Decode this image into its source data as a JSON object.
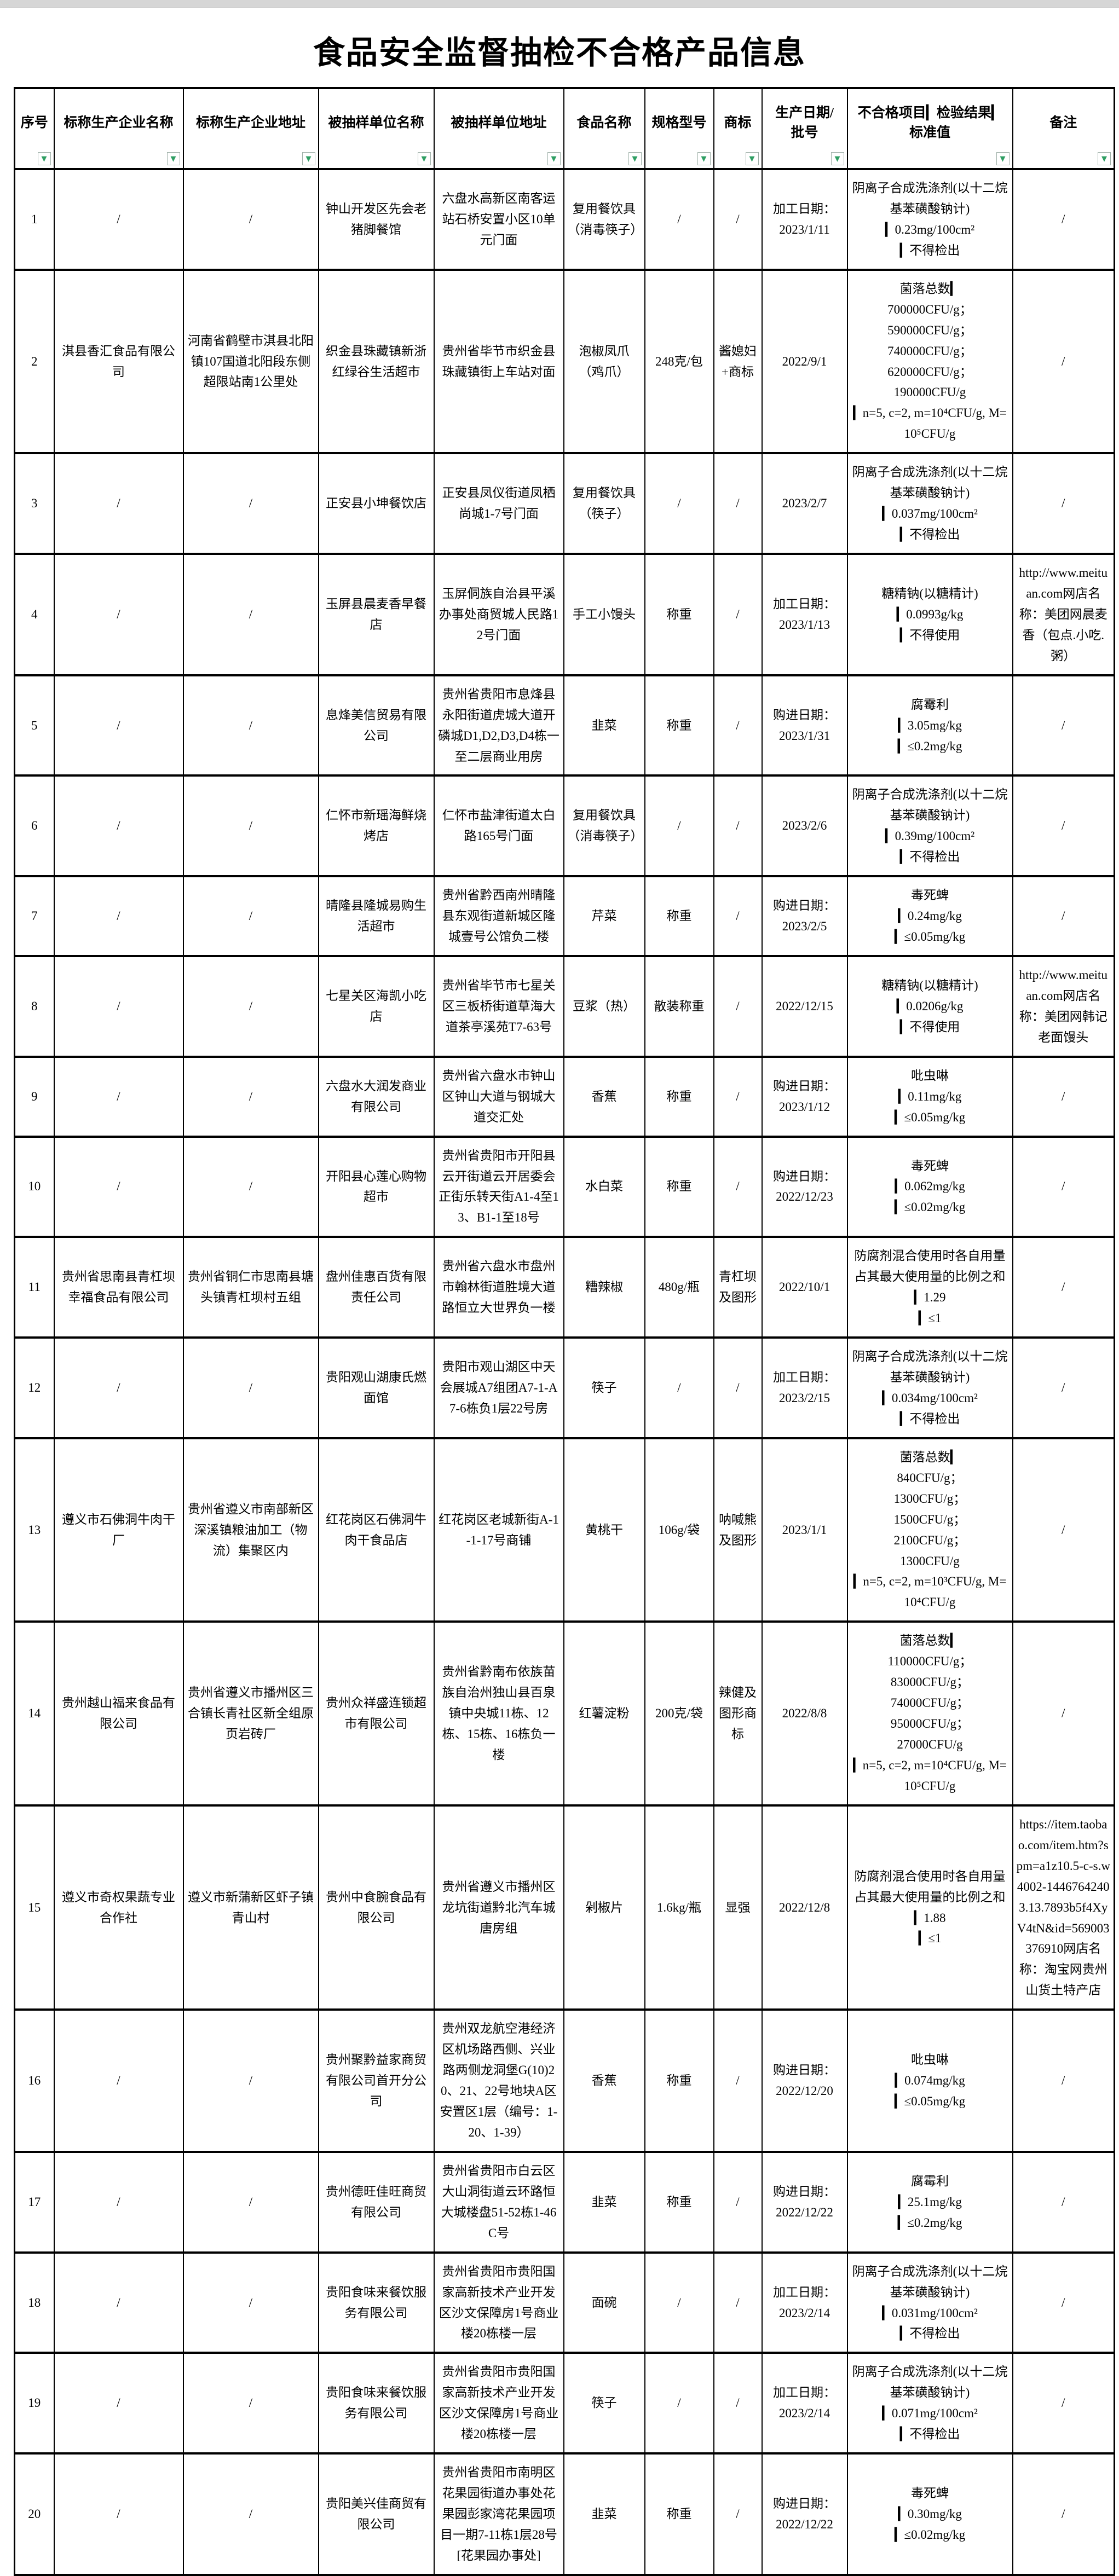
{
  "page": {
    "title": "食品安全监督抽检不合格产品信息"
  },
  "icons": {
    "filter": "▼"
  },
  "colors": {
    "filter_green": "#2f9e63",
    "border": "#000000",
    "chrome_gray": "#d6d6d6"
  },
  "table": {
    "columns": [
      {
        "key": "index",
        "label": "序号"
      },
      {
        "key": "producer_name",
        "label": "标称生产企业名称"
      },
      {
        "key": "producer_addr",
        "label": "标称生产企业地址"
      },
      {
        "key": "sampled_name",
        "label": "被抽样单位名称"
      },
      {
        "key": "sampled_addr",
        "label": "被抽样单位地址"
      },
      {
        "key": "food",
        "label": "食品名称"
      },
      {
        "key": "spec",
        "label": "规格型号"
      },
      {
        "key": "brand",
        "label": "商标"
      },
      {
        "key": "date",
        "label": "生产日期/\n批号"
      },
      {
        "key": "result",
        "label": "不合格项目▎检验结果▎\n标准值"
      },
      {
        "key": "note",
        "label": "备注"
      }
    ],
    "rows": [
      {
        "index": "1",
        "producer_name": "/",
        "producer_addr": "/",
        "sampled_name": "钟山开发区先会老猪脚餐馆",
        "sampled_addr": "六盘水高新区南客运站石桥安置小区10单元门面",
        "food": "复用餐饮具（消毒筷子）",
        "spec": "/",
        "brand": "/",
        "date": "加工日期：\n2023/1/11",
        "result": "阴离子合成洗涤剂(以十二烷基苯磺酸钠计)\n▎0.23mg/100cm²\n▎不得检出",
        "note": "/"
      },
      {
        "index": "2",
        "producer_name": "淇县香汇食品有限公司",
        "producer_addr": "河南省鹤壁市淇县北阳镇107国道北阳段东侧超限站南1公里处",
        "sampled_name": "织金县珠藏镇新浙红绿谷生活超市",
        "sampled_addr": "贵州省毕节市织金县珠藏镇街上车站对面",
        "food": "泡椒凤爪（鸡爪）",
        "spec": "248克/包",
        "brand": "酱媳妇+商标",
        "date": "2022/9/1",
        "result": "菌落总数▎\n700000CFU/g；\n590000CFU/g；\n740000CFU/g；\n620000CFU/g；\n190000CFU/g\n▎n=5, c=2, m=10⁴CFU/g, M=10⁵CFU/g",
        "note": "/"
      },
      {
        "index": "3",
        "producer_name": "/",
        "producer_addr": "/",
        "sampled_name": "正安县小坤餐饮店",
        "sampled_addr": "正安县凤仪街道凤栖尚城1-7号门面",
        "food": "复用餐饮具（筷子）",
        "spec": "/",
        "brand": "/",
        "date": "2023/2/7",
        "result": "阴离子合成洗涤剂(以十二烷基苯磺酸钠计)\n▎0.037mg/100cm²\n▎不得检出",
        "note": "/"
      },
      {
        "index": "4",
        "producer_name": "/",
        "producer_addr": "/",
        "sampled_name": "玉屏县晨麦香早餐店",
        "sampled_addr": "玉屏侗族自治县平溪办事处商贸城人民路12号门面",
        "food": "手工小馒头",
        "spec": "称重",
        "brand": "/",
        "date": "加工日期：\n2023/1/13",
        "result": "糖精钠(以糖精计)\n▎0.0993g/kg\n▎不得使用",
        "note": "http://www.meituan.com网店名称：美团网晨麦香（包点.小吃.粥）"
      },
      {
        "index": "5",
        "producer_name": "/",
        "producer_addr": "/",
        "sampled_name": "息烽美信贸易有限公司",
        "sampled_addr": "贵州省贵阳市息烽县永阳街道虎城大道开磷城D1,D2,D3,D4栋一至二层商业用房",
        "food": "韭菜",
        "spec": "称重",
        "brand": "/",
        "date": "购进日期：\n2023/1/31",
        "result": "腐霉利\n▎3.05mg/kg\n▎≤0.2mg/kg",
        "note": "/"
      },
      {
        "index": "6",
        "producer_name": "/",
        "producer_addr": "/",
        "sampled_name": "仁怀市新瑶海鲜烧烤店",
        "sampled_addr": "仁怀市盐津街道太白路165号门面",
        "food": "复用餐饮具（消毒筷子）",
        "spec": "/",
        "brand": "/",
        "date": "2023/2/6",
        "result": "阴离子合成洗涤剂(以十二烷基苯磺酸钠计)\n▎0.39mg/100cm²\n▎不得检出",
        "note": "/"
      },
      {
        "index": "7",
        "producer_name": "/",
        "producer_addr": "/",
        "sampled_name": "晴隆县隆城易购生活超市",
        "sampled_addr": "贵州省黔西南州晴隆县东观街道新城区隆城壹号公馆负二楼",
        "food": "芹菜",
        "spec": "称重",
        "brand": "/",
        "date": "购进日期：\n2023/2/5",
        "result": "毒死蜱\n▎0.24mg/kg\n▎≤0.05mg/kg",
        "note": "/"
      },
      {
        "index": "8",
        "producer_name": "/",
        "producer_addr": "/",
        "sampled_name": "七星关区海凯小吃店",
        "sampled_addr": "贵州省毕节市七星关区三板桥街道草海大道茶亭溪苑T7-63号",
        "food": "豆浆（热）",
        "spec": "散装称重",
        "brand": "/",
        "date": "2022/12/15",
        "result": "糖精钠(以糖精计)\n▎0.0206g/kg\n▎不得使用",
        "note": "http://www.meituan.com网店名称：美团网韩记老面馒头"
      },
      {
        "index": "9",
        "producer_name": "/",
        "producer_addr": "/",
        "sampled_name": "六盘水大润发商业有限公司",
        "sampled_addr": "贵州省六盘水市钟山区钟山大道与钢城大道交汇处",
        "food": "香蕉",
        "spec": "称重",
        "brand": "/",
        "date": "购进日期：\n2023/1/12",
        "result": "吡虫啉\n▎0.11mg/kg\n▎≤0.05mg/kg",
        "note": "/"
      },
      {
        "index": "10",
        "producer_name": "/",
        "producer_addr": "/",
        "sampled_name": "开阳县心莲心购物超市",
        "sampled_addr": "贵州省贵阳市开阳县云开街道云开居委会正街乐转天街A1-4至13、B1-1至18号",
        "food": "水白菜",
        "spec": "称重",
        "brand": "/",
        "date": "购进日期：\n2022/12/23",
        "result": "毒死蜱\n▎0.062mg/kg\n▎≤0.02mg/kg",
        "note": "/"
      },
      {
        "index": "11",
        "producer_name": "贵州省思南县青杠坝幸福食品有限公司",
        "producer_addr": "贵州省铜仁市思南县塘头镇青杠坝村五组",
        "sampled_name": "盘州佳惠百货有限责任公司",
        "sampled_addr": "贵州省六盘水市盘州市翰林街道胜境大道路恒立大世界负一楼",
        "food": "糟辣椒",
        "spec": "480g/瓶",
        "brand": "青杠坝及图形",
        "date": "2022/10/1",
        "result": "防腐剂混合使用时各自用量占其最大使用量的比例之和\n▎1.29\n▎≤1",
        "note": "/"
      },
      {
        "index": "12",
        "producer_name": "/",
        "producer_addr": "/",
        "sampled_name": "贵阳观山湖康氏燃面馆",
        "sampled_addr": "贵阳市观山湖区中天会展城A7组团A7-1-A7-6栋负1层22号房",
        "food": "筷子",
        "spec": "/",
        "brand": "/",
        "date": "加工日期：\n2023/2/15",
        "result": "阴离子合成洗涤剂(以十二烷基苯磺酸钠计)\n▎0.034mg/100cm²\n▎不得检出",
        "note": "/"
      },
      {
        "index": "13",
        "producer_name": "遵义市石佛洞牛肉干厂",
        "producer_addr": "贵州省遵义市南部新区深溪镇粮油加工（物流）集聚区内",
        "sampled_name": "红花岗区石佛洞牛肉干食品店",
        "sampled_addr": "红花岗区老城新街A-1-1-17号商铺",
        "food": "黄桃干",
        "spec": "106g/袋",
        "brand": "呐喊熊及图形",
        "date": "2023/1/1",
        "result": "菌落总数▎\n840CFU/g；\n1300CFU/g；\n1500CFU/g；\n2100CFU/g；\n1300CFU/g\n▎n=5, c=2, m=10³CFU/g, M=10⁴CFU/g",
        "note": "/"
      },
      {
        "index": "14",
        "producer_name": "贵州越山福来食品有限公司",
        "producer_addr": "贵州省遵义市播州区三合镇长青社区新全组原页岩砖厂",
        "sampled_name": "贵州众祥盛连锁超市有限公司",
        "sampled_addr": "贵州省黔南布依族苗族自治州独山县百泉镇中央城11栋、12栋、15栋、16栋负一楼",
        "food": "红薯淀粉",
        "spec": "200克/袋",
        "brand": "辣健及图形商标",
        "date": "2022/8/8",
        "result": "菌落总数▎\n110000CFU/g；\n83000CFU/g；\n74000CFU/g；\n95000CFU/g；\n27000CFU/g\n▎n=5, c=2, m=10⁴CFU/g, M=10⁵CFU/g",
        "note": "/"
      },
      {
        "index": "15",
        "producer_name": "遵义市奇权果蔬专业合作社",
        "producer_addr": "遵义市新蒲新区虾子镇青山村",
        "sampled_name": "贵州中食腕食品有限公司",
        "sampled_addr": "贵州省遵义市播州区龙坑街道黔北汽车城唐房组",
        "food": "剁椒片",
        "spec": "1.6kg/瓶",
        "brand": "显强",
        "date": "2022/12/8",
        "result": "防腐剂混合使用时各自用量占其最大使用量的比例之和\n▎1.88\n▎≤1",
        "note": "https://item.taobao.com/item.htm?spm=a1z10.5-c-s.w4002-14467642403.13.7893b5f4XyV4tN&id=569003376910网店名称：淘宝网贵州山货土特产店"
      },
      {
        "index": "16",
        "producer_name": "/",
        "producer_addr": "/",
        "sampled_name": "贵州聚黔益家商贸有限公司首开分公司",
        "sampled_addr": "贵州双龙航空港经济区机场路西侧、兴业路两侧龙洞堡G(10)20、21、22号地块A区安置区1层（编号：1-20、1-39）",
        "food": "香蕉",
        "spec": "称重",
        "brand": "/",
        "date": "购进日期：\n2022/12/20",
        "result": "吡虫啉\n▎0.074mg/kg\n▎≤0.05mg/kg",
        "note": "/"
      },
      {
        "index": "17",
        "producer_name": "/",
        "producer_addr": "/",
        "sampled_name": "贵州德旺佳旺商贸有限公司",
        "sampled_addr": "贵州省贵阳市白云区大山洞街道云环路恒大城楼盘51-52栋1-46C号",
        "food": "韭菜",
        "spec": "称重",
        "brand": "/",
        "date": "购进日期：\n2022/12/22",
        "result": "腐霉利\n▎25.1mg/kg\n▎≤0.2mg/kg",
        "note": "/"
      },
      {
        "index": "18",
        "producer_name": "/",
        "producer_addr": "/",
        "sampled_name": "贵阳食味来餐饮服务有限公司",
        "sampled_addr": "贵州省贵阳市贵阳国家高新技术产业开发区沙文保障房1号商业楼20栋楼一层",
        "food": "面碗",
        "spec": "/",
        "brand": "/",
        "date": "加工日期：\n2023/2/14",
        "result": "阴离子合成洗涤剂(以十二烷基苯磺酸钠计)\n▎0.031mg/100cm²\n▎不得检出",
        "note": "/"
      },
      {
        "index": "19",
        "producer_name": "/",
        "producer_addr": "/",
        "sampled_name": "贵阳食味来餐饮服务有限公司",
        "sampled_addr": "贵州省贵阳市贵阳国家高新技术产业开发区沙文保障房1号商业楼20栋楼一层",
        "food": "筷子",
        "spec": "/",
        "brand": "/",
        "date": "加工日期：\n2023/2/14",
        "result": "阴离子合成洗涤剂(以十二烷基苯磺酸钠计)\n▎0.071mg/100cm²\n▎不得检出",
        "note": "/"
      },
      {
        "index": "20",
        "producer_name": "/",
        "producer_addr": "/",
        "sampled_name": "贵阳美兴佳商贸有限公司",
        "sampled_addr": "贵州省贵阳市南明区花果园街道办事处花果园彭家湾花果园项目一期7-11栋1层28号[花果园办事处]",
        "food": "韭菜",
        "spec": "称重",
        "brand": "/",
        "date": "购进日期：\n2022/12/22",
        "result": "毒死蜱\n▎0.30mg/kg\n▎≤0.02mg/kg",
        "note": "/"
      }
    ]
  }
}
